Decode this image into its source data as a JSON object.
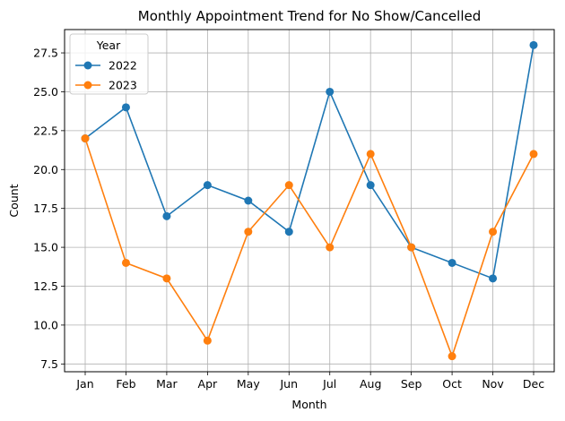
{
  "chart_data": {
    "type": "line",
    "title": "Monthly Appointment Trend for No Show/Cancelled",
    "xlabel": "Month",
    "ylabel": "Count",
    "categories": [
      "Jan",
      "Feb",
      "Mar",
      "Apr",
      "May",
      "Jun",
      "Jul",
      "Aug",
      "Sep",
      "Oct",
      "Nov",
      "Dec"
    ],
    "ylim": [
      7,
      29
    ],
    "yticks": [
      7.5,
      10.0,
      12.5,
      15.0,
      17.5,
      20.0,
      22.5,
      25.0,
      27.5
    ],
    "ytick_labels": [
      "7.5",
      "10.0",
      "12.5",
      "15.0",
      "17.5",
      "20.0",
      "22.5",
      "25.0",
      "27.5"
    ],
    "grid": true,
    "legend": {
      "title": "Year",
      "position": "top-left"
    },
    "series": [
      {
        "name": "2022",
        "color": "#1f77b4",
        "marker": "circle",
        "values": [
          22,
          24,
          17,
          19,
          18,
          16,
          25,
          19,
          15,
          14,
          13,
          28
        ]
      },
      {
        "name": "2023",
        "color": "#ff7f0e",
        "marker": "circle",
        "values": [
          22,
          14,
          13,
          9,
          16,
          19,
          15,
          21,
          15,
          8,
          16,
          21
        ]
      }
    ]
  }
}
